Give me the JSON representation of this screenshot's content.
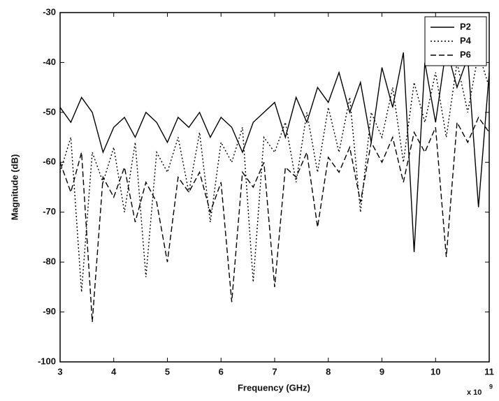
{
  "chart_data": {
    "type": "line",
    "x_label": "Frequency (GHz)",
    "y_label": "Magnitude (dB)",
    "x_multiplier": "x 10",
    "x_multiplier_exponent": "9",
    "x": [
      3.0,
      3.2,
      3.4,
      3.6,
      3.8,
      4.0,
      4.2,
      4.4,
      4.6,
      4.8,
      5.0,
      5.2,
      5.4,
      5.6,
      5.8,
      6.0,
      6.2,
      6.4,
      6.6,
      6.8,
      7.0,
      7.2,
      7.4,
      7.6,
      7.8,
      8.0,
      8.2,
      8.4,
      8.6,
      8.8,
      9.0,
      9.2,
      9.4,
      9.6,
      9.8,
      10.0,
      10.2,
      10.4,
      10.6,
      10.8,
      11.0
    ],
    "series": [
      {
        "name": "P2",
        "color": "#000000",
        "line_style": "solid",
        "values": [
          -49,
          -52,
          -47,
          -50,
          -58,
          -53,
          -51,
          -55,
          -50,
          -52,
          -56,
          -51,
          -53,
          -50,
          -55,
          -51,
          -53,
          -58,
          -52,
          -50,
          -48,
          -55,
          -47,
          -52,
          -45,
          -48,
          -42,
          -50,
          -44,
          -56,
          -41,
          -49,
          -38,
          -78,
          -40,
          -52,
          -37,
          -45,
          -39,
          -69,
          -42
        ]
      },
      {
        "name": "P4",
        "color": "#000000",
        "line_style": "dotted",
        "values": [
          -62,
          -55,
          -86,
          -58,
          -64,
          -57,
          -70,
          -56,
          -83,
          -58,
          -62,
          -55,
          -66,
          -54,
          -72,
          -56,
          -60,
          -53,
          -84,
          -55,
          -58,
          -52,
          -64,
          -50,
          -62,
          -49,
          -58,
          -47,
          -70,
          -50,
          -55,
          -45,
          -60,
          -44,
          -52,
          -42,
          -55,
          -40,
          -50,
          -38,
          -45
        ]
      },
      {
        "name": "P6",
        "color": "#000000",
        "line_style": "dashed",
        "values": [
          -60,
          -66,
          -58,
          -92,
          -63,
          -67,
          -61,
          -72,
          -64,
          -68,
          -80,
          -63,
          -66,
          -62,
          -70,
          -64,
          -88,
          -62,
          -65,
          -60,
          -85,
          -61,
          -63,
          -58,
          -73,
          -59,
          -62,
          -57,
          -68,
          -56,
          -60,
          -55,
          -64,
          -54,
          -58,
          -53,
          -79,
          -52,
          -56,
          -51,
          -54
        ]
      }
    ],
    "xlim": [
      3,
      11
    ],
    "xticks": [
      3,
      4,
      5,
      6,
      7,
      8,
      9,
      10,
      11
    ],
    "ylim": [
      -100,
      -30
    ],
    "yticks": [
      -100,
      -90,
      -80,
      -70,
      -60,
      -50,
      -40,
      -30
    ],
    "legend": "top-right"
  }
}
